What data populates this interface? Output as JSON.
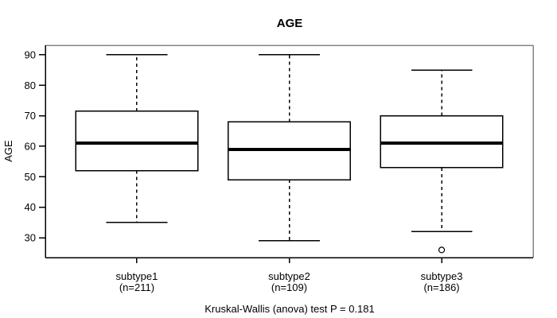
{
  "figure": {
    "title": "AGE",
    "caption": "Kruskal-Wallis (anova) test P = 0.181"
  },
  "chart_data": {
    "type": "boxplot",
    "title": "AGE",
    "xlabel": "",
    "ylabel": "AGE",
    "ylim": [
      23.5,
      93.1
    ],
    "yticks": [
      30,
      40,
      50,
      60,
      70,
      80,
      90
    ],
    "xlim": [
      0.4,
      3.6
    ],
    "grid": false,
    "legend": "none",
    "categories": [
      "subtype1",
      "subtype2",
      "subtype3"
    ],
    "category_sublabels": [
      "(n=211)",
      "(n=109)",
      "(n=186)"
    ],
    "series": [
      {
        "name": "subtype1",
        "n": 211,
        "position": 1,
        "whisker_low": 35,
        "q1": 52,
        "median": 61,
        "q3": 71.5,
        "whisker_high": 90,
        "outliers": []
      },
      {
        "name": "subtype2",
        "n": 109,
        "position": 2,
        "whisker_low": 29,
        "q1": 49,
        "median": 59,
        "q3": 68,
        "whisker_high": 90,
        "outliers": []
      },
      {
        "name": "subtype3",
        "n": 186,
        "position": 3,
        "whisker_low": 32,
        "q1": 53,
        "median": 61,
        "q3": 70,
        "whisker_high": 85,
        "outliers": [
          26
        ]
      }
    ],
    "box_width": 0.8,
    "cap_width": 0.4,
    "annotation": "Kruskal-Wallis (anova) test P = 0.181"
  },
  "colors": {
    "background": "#ffffff",
    "box_fill": "#ffffff",
    "line": "#000000",
    "frame_gray": "#848484",
    "text": "#000000"
  }
}
